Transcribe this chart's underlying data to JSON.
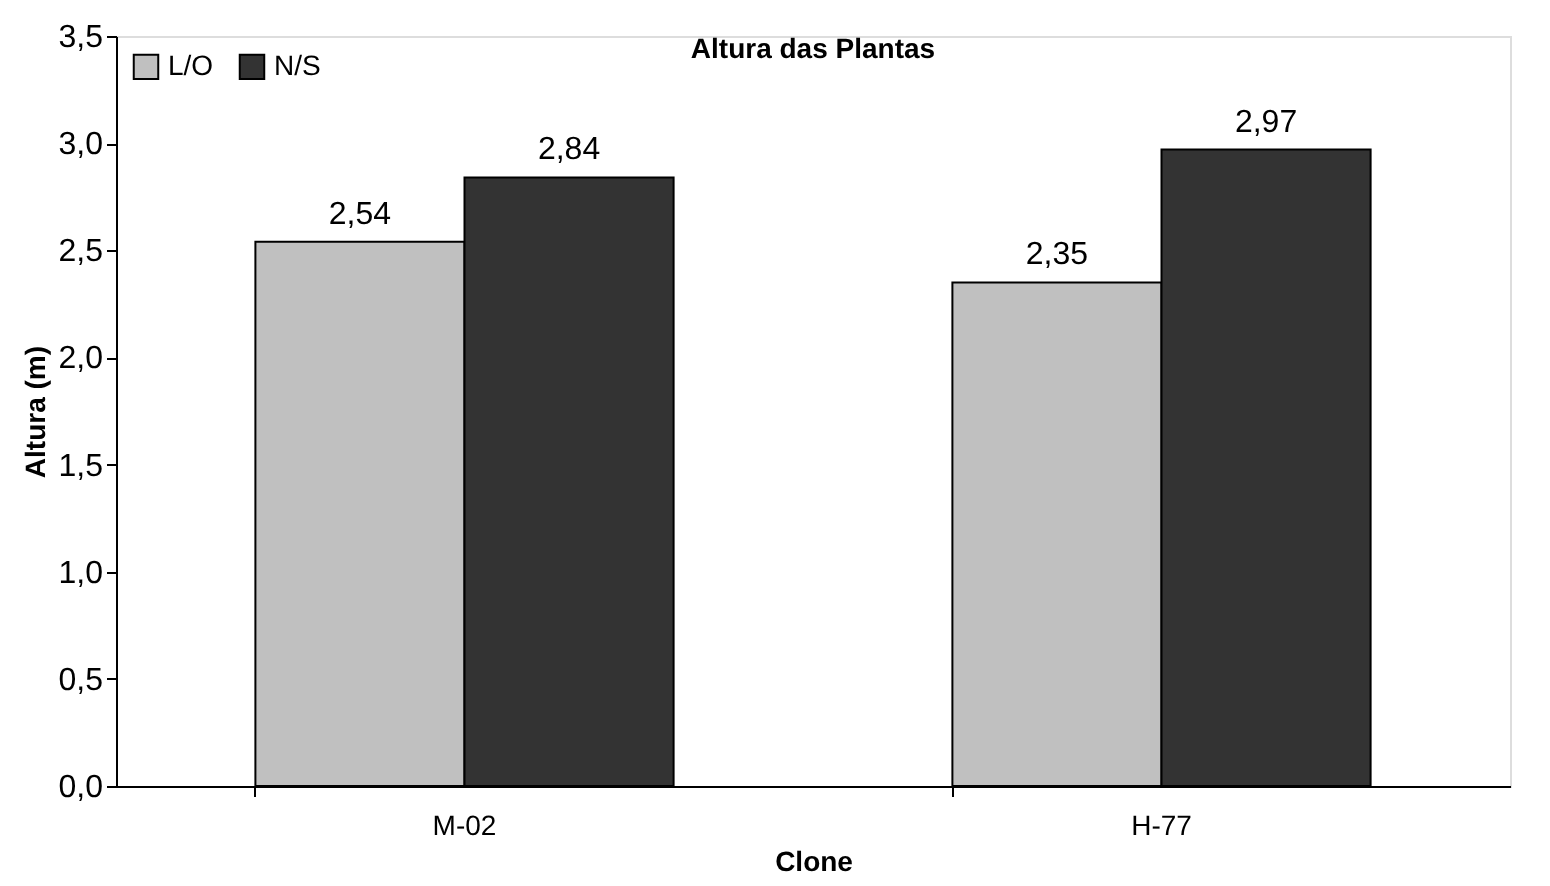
{
  "chart_data": {
    "type": "bar",
    "title": "Altura das Plantas",
    "xlabel": "Clone",
    "ylabel": "Altura (m)",
    "categories": [
      "M-02",
      "H-77"
    ],
    "series": [
      {
        "name": "L/O",
        "color": "#c0c0c0",
        "values": [
          2.54,
          2.35
        ],
        "value_labels": [
          "2,54",
          "2,35"
        ]
      },
      {
        "name": "N/S",
        "color": "#333333",
        "values": [
          2.84,
          2.97
        ],
        "value_labels": [
          "2,84",
          "2,97"
        ]
      }
    ],
    "ylim": [
      0,
      3.5
    ],
    "yticks": [
      {
        "value": 0,
        "label": "0,0"
      },
      {
        "value": 0.5,
        "label": "0,5"
      },
      {
        "value": 1,
        "label": "1,0"
      },
      {
        "value": 1.5,
        "label": "1,5"
      },
      {
        "value": 2,
        "label": "2,0"
      },
      {
        "value": 2.5,
        "label": "2,5"
      },
      {
        "value": 3,
        "label": "3,0"
      },
      {
        "value": 3.5,
        "label": "3,5"
      }
    ],
    "grid": false,
    "legend": "top left"
  }
}
